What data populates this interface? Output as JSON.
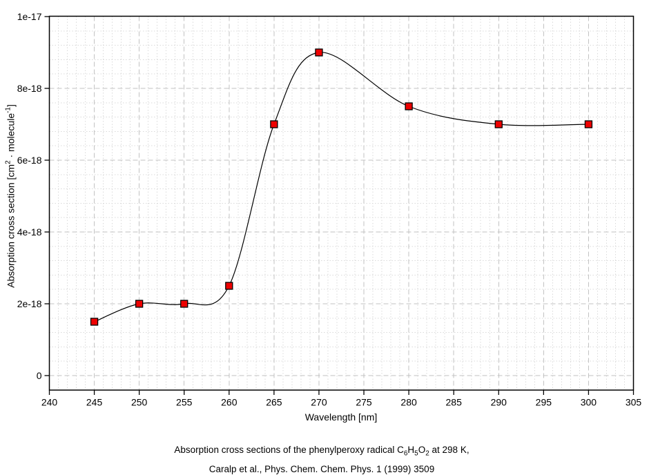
{
  "chart_data": {
    "type": "line",
    "title": "Absorption cross sections of the phenylperoxy radical C6H5O2 at 298 K, Caralp et al., Phys. Chem. Chem. Phys. 1 (1999) 3509",
    "xlabel": "Wavelength [nm]",
    "ylabel": "Absorption cross section [cm² · molecule⁻¹]",
    "ylabel_parts": {
      "a": "Absorption cross section [cm",
      "sup1": "2",
      "b": " · molecule",
      "sup2": "-1",
      "c": "]"
    },
    "series_name": "absorption cross section",
    "x": [
      245,
      250,
      255,
      260,
      265,
      270,
      280,
      290,
      300
    ],
    "y": [
      1.5e-18,
      2e-18,
      2e-18,
      2.5e-18,
      7e-18,
      9e-18,
      7.5e-18,
      7e-18,
      7e-18
    ],
    "xlim": [
      240,
      305
    ],
    "ylim": [
      0,
      1e-17
    ],
    "x_ticks": [
      240,
      245,
      250,
      255,
      260,
      265,
      270,
      275,
      280,
      285,
      290,
      295,
      300,
      305
    ],
    "y_ticks": [
      {
        "value": 0,
        "label": "0"
      },
      {
        "value": 2e-18,
        "label": "2e-18"
      },
      {
        "value": 4e-18,
        "label": "4e-18"
      },
      {
        "value": 6e-18,
        "label": "6e-18"
      },
      {
        "value": 8e-18,
        "label": "8e-18"
      },
      {
        "value": 1e-17,
        "label": "1e-17"
      }
    ],
    "x_minor_step": 1,
    "y_minor_step": 4e-19,
    "grid": true,
    "legend": false,
    "marker": "filled-square",
    "colors": {
      "curve": "#000000",
      "marker_fill": "#ee0000",
      "marker_edge": "#000000",
      "grid_major": "#c2c2c2",
      "grid_minor": "#d9d9d9",
      "axis": "#000000",
      "text": "#000000",
      "background": "#ffffff"
    }
  },
  "caption": {
    "line1": {
      "pre": "Absorption cross sections of the phenylperoxy radical C",
      "sub1": "6",
      "mid1": "H",
      "sub2": "5",
      "mid2": "O",
      "sub3": "2",
      "post": " at 298 K,"
    },
    "line2": "Caralp et al., Phys. Chem. Chem. Phys. 1 (1999) 3509"
  }
}
